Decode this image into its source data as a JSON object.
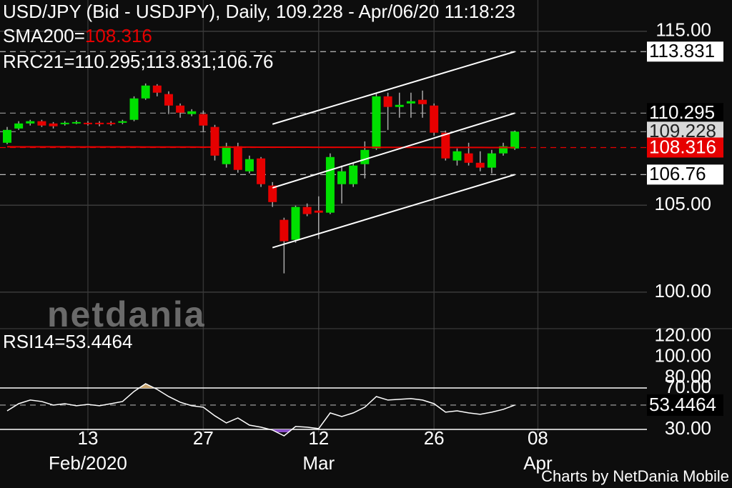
{
  "chart_data": [
    {
      "type": "candlestick",
      "title": "USD/JPY (Bid - USDJPY),  Daily, 109.228 - Apr/06/20 11:18:23",
      "watermark": "netdania",
      "footer": "Charts by NetDania Mobile",
      "categories": [
        "2020-02-04",
        "2020-02-05",
        "2020-02-06",
        "2020-02-07",
        "2020-02-10",
        "2020-02-11",
        "2020-02-12",
        "2020-02-13",
        "2020-02-14",
        "2020-02-17",
        "2020-02-18",
        "2020-02-19",
        "2020-02-20",
        "2020-02-21",
        "2020-02-24",
        "2020-02-25",
        "2020-02-26",
        "2020-02-27",
        "2020-02-28",
        "2020-03-02",
        "2020-03-03",
        "2020-03-04",
        "2020-03-05",
        "2020-03-06",
        "2020-03-09",
        "2020-03-10",
        "2020-03-11",
        "2020-03-12",
        "2020-03-13",
        "2020-03-16",
        "2020-03-17",
        "2020-03-18",
        "2020-03-19",
        "2020-03-20",
        "2020-03-23",
        "2020-03-24",
        "2020-03-25",
        "2020-03-26",
        "2020-03-27",
        "2020-03-30",
        "2020-03-31",
        "2020-04-01",
        "2020-04-02",
        "2020-04-03",
        "2020-04-06"
      ],
      "open": [
        108.59,
        109.41,
        109.7,
        109.83,
        109.7,
        109.66,
        109.74,
        109.74,
        109.74,
        109.74,
        109.74,
        109.91,
        111.14,
        111.88,
        111.39,
        110.73,
        110.24,
        110.24,
        109.5,
        107.36,
        108.39,
        106.95,
        107.69,
        106.13,
        104.16,
        103.01,
        104.9,
        104.69,
        104.57,
        106.21,
        106.21,
        107.36,
        108.26,
        111.26,
        110.65,
        110.85,
        111.06,
        110.73,
        109.17,
        107.57,
        107.98,
        107.44,
        107.16,
        107.98,
        108.26
      ],
      "high": [
        109.5,
        109.83,
        109.91,
        109.91,
        109.78,
        109.83,
        109.87,
        109.83,
        109.83,
        109.83,
        109.91,
        111.26,
        112.0,
        111.96,
        111.55,
        110.85,
        110.52,
        110.44,
        109.62,
        108.59,
        108.59,
        107.85,
        107.77,
        106.33,
        104.28,
        104.98,
        105.1,
        105.51,
        107.98,
        107.28,
        107.45,
        108.67,
        111.47,
        111.47,
        111.47,
        111.47,
        111.59,
        110.85,
        109.29,
        108.26,
        108.59,
        108.1,
        108.18,
        108.59,
        109.29
      ],
      "low": [
        108.51,
        109.33,
        109.58,
        109.5,
        109.41,
        109.58,
        109.66,
        109.58,
        109.54,
        109.58,
        109.66,
        109.83,
        111.06,
        111.26,
        110.24,
        110.03,
        110.12,
        109.21,
        107.57,
        107.16,
        106.87,
        106.83,
        106.05,
        104.9,
        101.08,
        102.84,
        104.37,
        103.06,
        104.49,
        105.1,
        106.05,
        106.54,
        108.18,
        109.33,
        110.03,
        110.03,
        110.03,
        109.0,
        107.57,
        107.28,
        107.28,
        106.95,
        106.83,
        107.85,
        108.18
      ],
      "close": [
        109.33,
        109.7,
        109.83,
        109.58,
        109.54,
        109.74,
        109.78,
        109.66,
        109.66,
        109.66,
        109.83,
        111.14,
        111.88,
        111.47,
        110.73,
        110.32,
        110.4,
        109.58,
        107.85,
        108.39,
        107.03,
        107.65,
        106.21,
        105.18,
        102.93,
        104.9,
        104.49,
        104.57,
        107.77,
        106.95,
        107.28,
        108.18,
        111.26,
        110.65,
        110.77,
        110.98,
        110.81,
        109.17,
        107.69,
        108.1,
        107.44,
        107.16,
        107.98,
        108.39,
        109.228
      ],
      "up_color": "#00e000",
      "down_color": "#e60000",
      "ylim": [
        97.9,
        116.8
      ],
      "yticks": [
        {
          "value": 115,
          "label": "115.00"
        },
        {
          "value": 105,
          "label": "105.00"
        },
        {
          "value": 100,
          "label": "100.00"
        }
      ],
      "xticks": [
        {
          "value": "2020-02-13",
          "label": "13"
        },
        {
          "value": "2020-02-27",
          "label": "27"
        },
        {
          "value": "2020-03-12",
          "label": "12"
        },
        {
          "value": "2020-03-26",
          "label": "26"
        },
        {
          "value": "2020-04-08",
          "label": "08"
        }
      ],
      "month_labels": [
        {
          "value": "2020-02-13",
          "label": "Feb/2020"
        },
        {
          "value": "2020-03-12",
          "label": "Mar"
        },
        {
          "value": "2020-04-08",
          "label": "Apr"
        }
      ],
      "grid": true,
      "sma": {
        "label": "SMA200=",
        "color": "#e60000",
        "values": [
          108.36,
          108.359,
          108.358,
          108.357,
          108.356,
          108.355,
          108.354,
          108.353,
          108.352,
          108.351,
          108.35,
          108.349,
          108.348,
          108.347,
          108.346,
          108.345,
          108.344,
          108.343,
          108.342,
          108.341,
          108.34,
          108.339,
          108.338,
          108.337,
          108.336,
          108.335,
          108.334,
          108.333,
          108.332,
          108.331,
          108.33,
          108.329,
          108.328,
          108.327,
          108.326,
          108.325,
          108.324,
          108.323,
          108.322,
          108.321,
          108.32,
          108.319,
          108.318,
          108.317,
          108.316
        ]
      },
      "channel": {
        "label": "RRC21=110.295;113.831;106.76",
        "color": "#ffffff",
        "x": [
          "2020-03-06",
          "2020-04-06"
        ],
        "lines": [
          [
            106.0,
            110.295
          ],
          [
            109.66,
            113.831
          ],
          [
            102.56,
            106.76
          ]
        ]
      }
    },
    {
      "type": "line",
      "label": "RSI14=53.4464",
      "color": "#ffffff",
      "values": [
        47.9,
        54.8,
        58.3,
        56.9,
        53.4,
        54.8,
        52.8,
        54.1,
        52.8,
        54.8,
        56.9,
        66.6,
        74.1,
        68.6,
        61.7,
        56.2,
        52.8,
        51.4,
        43.1,
        36.2,
        41.0,
        34.1,
        32.1,
        29.3,
        23.8,
        32.8,
        32.1,
        30.7,
        45.9,
        42.4,
        45.9,
        51.4,
        61.7,
        58.3,
        59.0,
        59.7,
        58.3,
        54.8,
        46.6,
        47.9,
        45.9,
        44.5,
        46.6,
        49.3,
        53.4464
      ],
      "ylim": [
        27.2,
        127.2
      ],
      "yticks": [
        {
          "value": 120,
          "label": "120.00"
        },
        {
          "value": 100,
          "label": "100.00"
        },
        {
          "value": 80,
          "label": "80.00"
        },
        {
          "value": 70,
          "label": "70.00"
        },
        {
          "value": 30,
          "label": "30.00"
        }
      ],
      "levels": [
        70,
        30
      ],
      "overbought_color": "#c8a46e",
      "oversold_color": "#8a4fc8"
    }
  ]
}
